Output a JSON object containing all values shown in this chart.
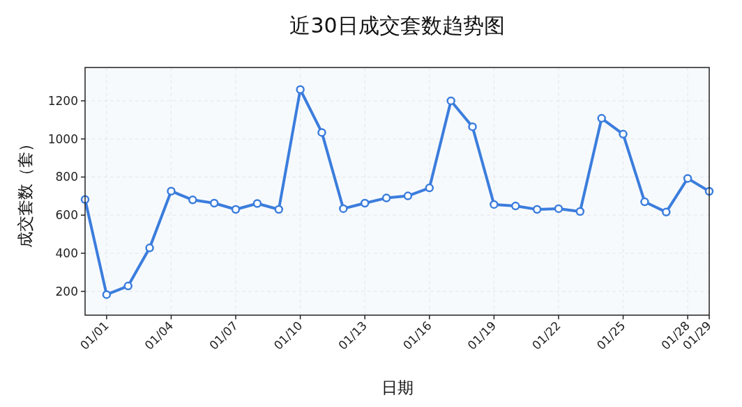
{
  "chart_data": {
    "type": "line",
    "title": "近30日成交套数趋势图",
    "xlabel": "日期",
    "ylabel": "成交套数（套）",
    "categories": [
      null,
      "01/01",
      null,
      null,
      "01/04",
      null,
      null,
      "01/07",
      null,
      null,
      "01/10",
      null,
      null,
      "01/13",
      null,
      null,
      "01/16",
      null,
      null,
      "01/19",
      null,
      null,
      "01/22",
      null,
      null,
      "01/25",
      null,
      null,
      "01/28",
      "01/29"
    ],
    "series": [
      {
        "color": "#3b7ddd",
        "values": [
          682,
          183,
          228,
          428,
          726,
          680,
          663,
          630,
          661,
          630,
          1259,
          1034,
          634,
          663,
          690,
          701,
          743,
          1200,
          1064,
          656,
          648,
          630,
          634,
          619,
          1108,
          1025,
          670,
          616,
          793,
          725
        ]
      }
    ],
    "ylim": [
      75,
      1375
    ],
    "yticks": [
      200,
      400,
      600,
      800,
      1000,
      1200
    ],
    "grid": true,
    "marker": "circle",
    "line_style": "solid"
  }
}
